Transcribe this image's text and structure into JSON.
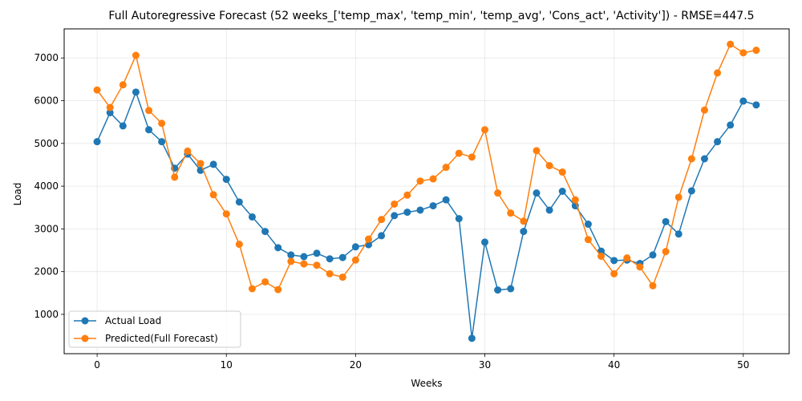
{
  "chart_data": {
    "type": "line",
    "title": "Full Autoregressive Forecast (52 weeks_['temp_max', 'temp_min', 'temp_avg', 'Cons_act', 'Activity']) - RMSE=447.5",
    "xlabel": "Weeks",
    "ylabel": "Load",
    "xlim": [
      -2.55,
      53.55
    ],
    "ylim": [
      80,
      7680
    ],
    "xticks": [
      0,
      10,
      20,
      30,
      40,
      50
    ],
    "yticks": [
      1000,
      2000,
      3000,
      4000,
      5000,
      6000,
      7000
    ],
    "grid": true,
    "legend_position": "lower-left",
    "x": [
      0,
      1,
      2,
      3,
      4,
      5,
      6,
      7,
      8,
      9,
      10,
      11,
      12,
      13,
      14,
      15,
      16,
      17,
      18,
      19,
      20,
      21,
      22,
      23,
      24,
      25,
      26,
      27,
      28,
      29,
      30,
      31,
      32,
      33,
      34,
      35,
      36,
      37,
      38,
      39,
      40,
      41,
      42,
      43,
      44,
      45,
      46,
      47,
      48,
      49,
      50,
      51
    ],
    "series": [
      {
        "name": "Actual Load",
        "color": "#1f77b4",
        "values": [
          5040,
          5720,
          5410,
          6200,
          5320,
          5040,
          4420,
          4750,
          4370,
          4510,
          4160,
          3630,
          3280,
          2940,
          2560,
          2390,
          2350,
          2430,
          2300,
          2330,
          2580,
          2630,
          2840,
          3310,
          3390,
          3440,
          3540,
          3680,
          3240,
          440,
          2690,
          1570,
          1600,
          2940,
          3840,
          3440,
          3880,
          3540,
          3110,
          2480,
          2260,
          2270,
          2190,
          2390,
          3170,
          2880,
          3890,
          4640,
          5040,
          5430,
          5990,
          5900
        ]
      },
      {
        "name": "Predicted(Full Forecast)",
        "color": "#ff7f0e",
        "values": [
          6250,
          5840,
          6370,
          7060,
          5770,
          5470,
          4210,
          4820,
          4530,
          3800,
          3350,
          2640,
          1600,
          1760,
          1580,
          2240,
          2180,
          2150,
          1950,
          1870,
          2270,
          2760,
          3220,
          3580,
          3790,
          4120,
          4170,
          4440,
          4770,
          4680,
          5320,
          3840,
          3370,
          3180,
          4830,
          4480,
          4330,
          3680,
          2750,
          2360,
          1950,
          2320,
          2110,
          1670,
          2470,
          3740,
          4640,
          5780,
          6650,
          7320,
          7120,
          7180
        ]
      }
    ]
  }
}
